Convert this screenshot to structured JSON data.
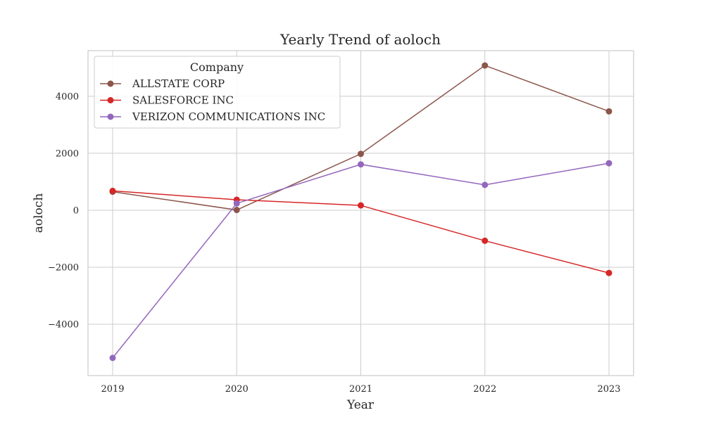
{
  "chart_data": {
    "type": "line",
    "title": "Yearly Trend of aoloch",
    "xlabel": "Year",
    "ylabel": "aoloch",
    "x": [
      "2019",
      "2020",
      "2021",
      "2022",
      "2023"
    ],
    "ylim": [
      -5800,
      5600
    ],
    "yticks": [
      -4000,
      -2000,
      0,
      2000,
      4000
    ],
    "ytick_labels": [
      "−4000",
      "−2000",
      "0",
      "2000",
      "4000"
    ],
    "grid": true,
    "legend": {
      "title": "Company",
      "placement": "top-left"
    },
    "series": [
      {
        "name": "ALLSTATE CORP",
        "color": "#8c564b",
        "values": [
          650,
          10,
          1980,
          5080,
          3470
        ]
      },
      {
        "name": "SALESFORCE INC",
        "color": "#d62728",
        "values": [
          680,
          370,
          170,
          -1070,
          -2200
        ]
      },
      {
        "name": "VERIZON COMMUNICATIONS INC",
        "color": "#9467bd",
        "values": [
          -5180,
          240,
          1610,
          890,
          1650
        ]
      }
    ]
  }
}
